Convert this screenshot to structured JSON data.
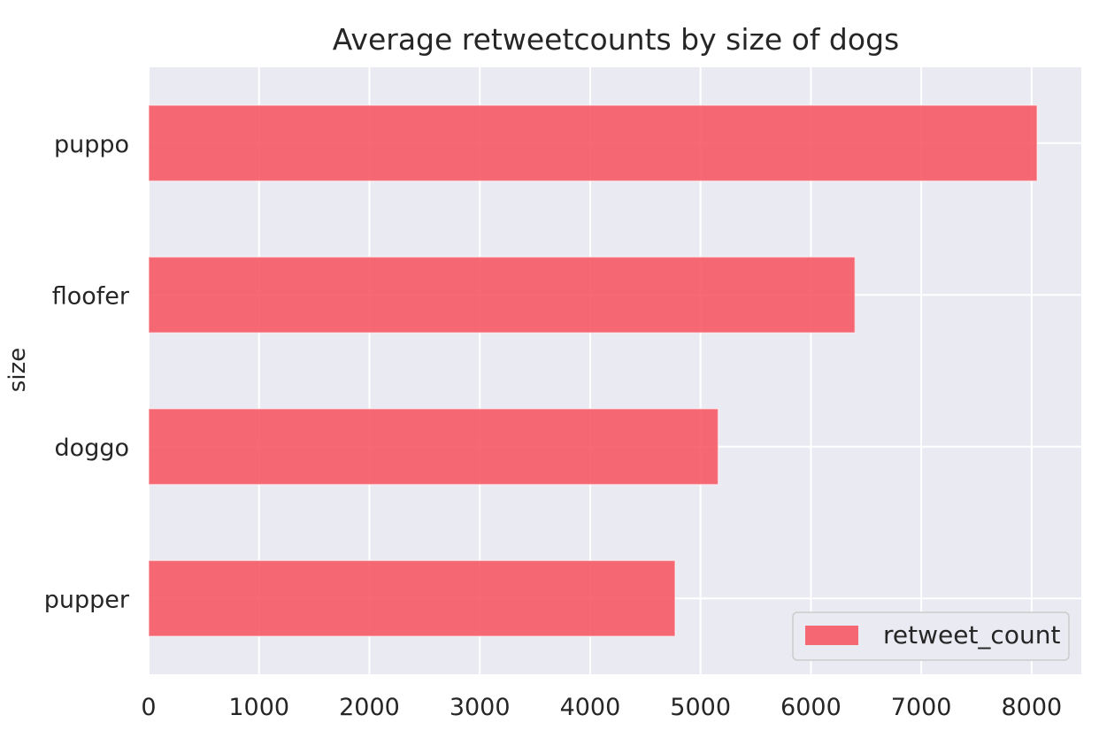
{
  "chart_data": {
    "type": "bar",
    "orientation": "horizontal",
    "title": "Average retweetcounts by size of dogs",
    "xlabel": "",
    "ylabel": "size",
    "categories": [
      "pupper",
      "doggo",
      "floofer",
      "puppo"
    ],
    "series": [
      {
        "name": "retweet_count",
        "values": [
          4770,
          5160,
          6400,
          8050
        ],
        "color": "#f65a65"
      }
    ],
    "xlim": [
      0,
      8450
    ],
    "xticks": [
      0,
      1000,
      2000,
      3000,
      4000,
      5000,
      6000,
      7000,
      8000
    ],
    "grid": true,
    "legend_position": "lower-right"
  },
  "colors": {
    "axes_background": "#eaeaf2",
    "grid": "#ffffff",
    "text": "#262626",
    "bar": "#f65a65"
  }
}
